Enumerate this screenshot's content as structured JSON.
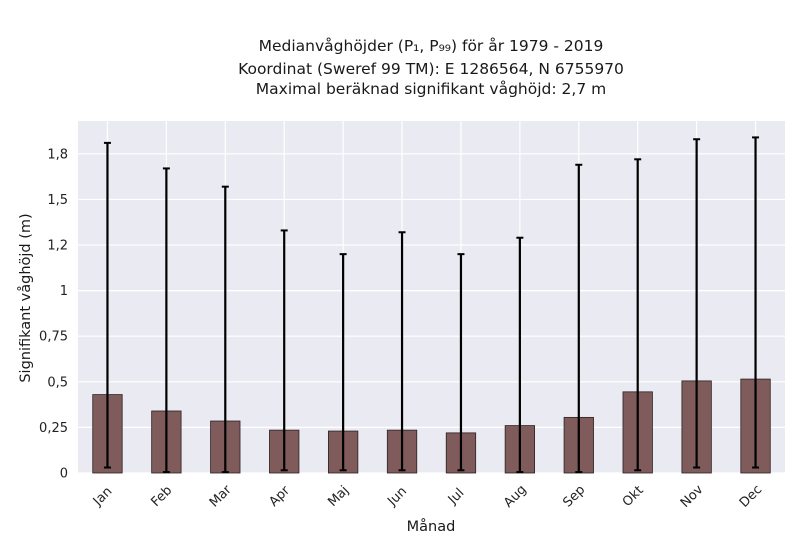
{
  "chart_data": {
    "type": "bar",
    "title_lines": [
      "Medianvåghöjder (P₁, P₉₉) för år 1979 - 2019",
      "Koordinat (Sweref 99 TM): E 1286564, N 6755970",
      "Maximal beräknad signifikant våghöjd: 2,7 m"
    ],
    "xlabel": "Månad",
    "ylabel": "Signifikant våghöjd (m)",
    "categories": [
      "Jan",
      "Feb",
      "Mar",
      "Apr",
      "Maj",
      "Jun",
      "Jul",
      "Aug",
      "Sep",
      "Okt",
      "Nov",
      "Dec"
    ],
    "values": [
      0.43,
      0.34,
      0.285,
      0.235,
      0.23,
      0.235,
      0.22,
      0.26,
      0.305,
      0.445,
      0.505,
      0.515
    ],
    "lower": [
      0.03,
      0.005,
      0.005,
      0.015,
      0.015,
      0.015,
      0.015,
      0.005,
      0.005,
      0.015,
      0.03,
      0.03
    ],
    "upper": [
      1.81,
      1.67,
      1.57,
      1.33,
      1.2,
      1.32,
      1.2,
      1.29,
      1.69,
      1.72,
      1.83,
      1.84
    ],
    "yticks": [
      0,
      0.25,
      0.5,
      0.75,
      1,
      1.25,
      1.5,
      1.75
    ],
    "ytick_labels": [
      "0",
      "0,25",
      "0,5",
      "0,75",
      "1",
      "1,2",
      "1,5",
      "1,8"
    ],
    "ylim": [
      0,
      1.93
    ],
    "grid": true,
    "colors": {
      "bar": "#7f5b5b",
      "bar_edge": "#2b2222",
      "background": "#eaeaf2",
      "grid": "#ffffff",
      "errorbar": "#000000"
    }
  }
}
